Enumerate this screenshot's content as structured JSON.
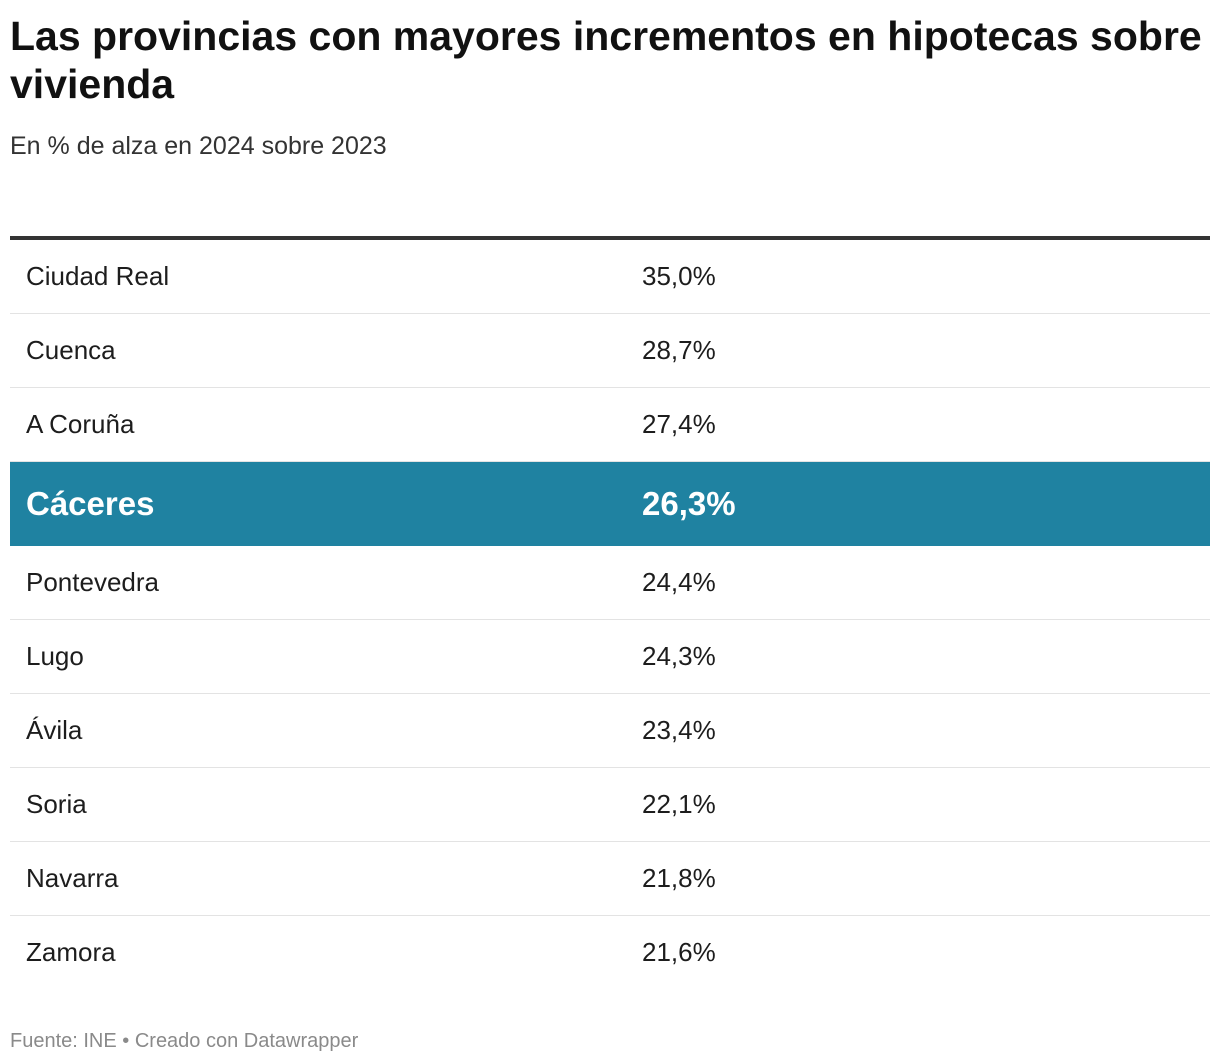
{
  "title": "Las provincias con mayores incrementos en hipotecas sobre vivienda",
  "subtitle": "En % de alza en 2024 sobre 2023",
  "footer": "Fuente: INE • Creado con Datawrapper",
  "colors": {
    "highlight_row": "#1f82a1",
    "header_rule": "#333333",
    "row_divider": "#e3e3e3",
    "footer_text": "#8a8a8a"
  },
  "chart_data": {
    "type": "table",
    "title": "Las provincias con mayores incrementos en hipotecas sobre vivienda",
    "subtitle": "En % de alza en 2024 sobre 2023",
    "source": "Fuente: INE • Creado con Datawrapper",
    "highlighted": "Cáceres",
    "rows": [
      {
        "name": "Ciudad Real",
        "value": 35.0,
        "label": "35,0%"
      },
      {
        "name": "Cuenca",
        "value": 28.7,
        "label": "28,7%"
      },
      {
        "name": "A Coruña",
        "value": 27.4,
        "label": "27,4%"
      },
      {
        "name": "Cáceres",
        "value": 26.3,
        "label": "26,3%"
      },
      {
        "name": "Pontevedra",
        "value": 24.4,
        "label": "24,4%"
      },
      {
        "name": "Lugo",
        "value": 24.3,
        "label": "24,3%"
      },
      {
        "name": "Ávila",
        "value": 23.4,
        "label": "23,4%"
      },
      {
        "name": "Soria",
        "value": 22.1,
        "label": "22,1%"
      },
      {
        "name": "Navarra",
        "value": 21.8,
        "label": "21,8%"
      },
      {
        "name": "Zamora",
        "value": 21.6,
        "label": "21,6%"
      }
    ]
  }
}
